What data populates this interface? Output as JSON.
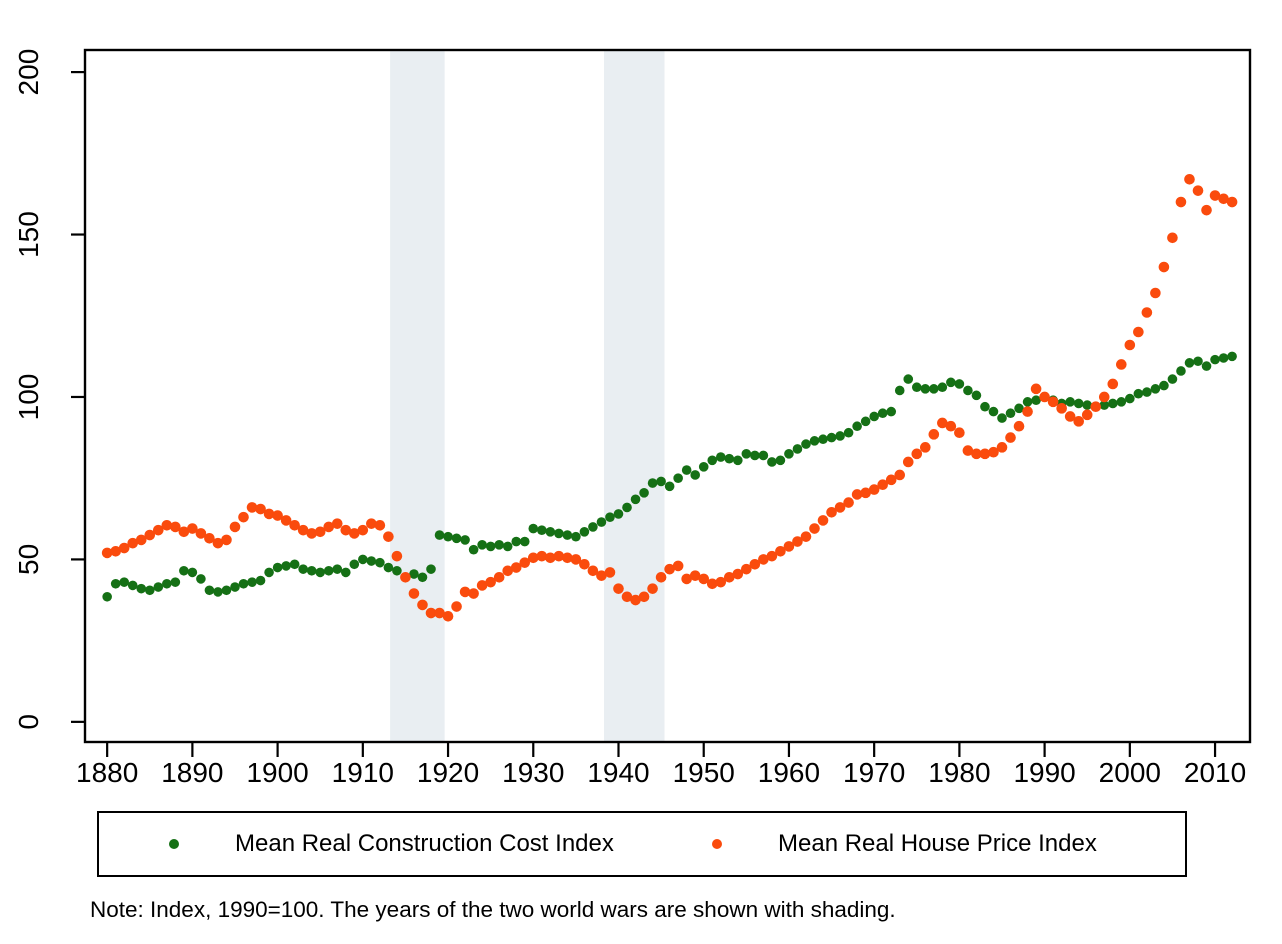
{
  "note": "Note: Index, 1990=100. The years of the two world wars are shown with shading.",
  "legend": {
    "items": [
      {
        "label": "Mean Real Construction Cost Index",
        "color": "#157015"
      },
      {
        "label": "Mean Real House Price Index",
        "color": "#fa4b0d"
      }
    ]
  },
  "chart_data": {
    "type": "scatter",
    "title": "",
    "xlabel": "",
    "ylabel": "",
    "grid": false,
    "legend_position": "bottom",
    "x_ticks": [
      1880,
      1890,
      1900,
      1910,
      1920,
      1930,
      1940,
      1950,
      1960,
      1970,
      1980,
      1990,
      2000,
      2010
    ],
    "y_ticks": [
      0,
      50,
      100,
      150,
      200
    ],
    "xlim": [
      1877.4,
      2014.1
    ],
    "ylim": [
      -6.2,
      206.8
    ],
    "shade_color": "#e9eef2",
    "shaded_regions": [
      {
        "name": "World War I",
        "from": 1913.2,
        "to": 1919.6
      },
      {
        "name": "World War II",
        "from": 1938.3,
        "to": 1945.4
      }
    ],
    "start_year": 1880,
    "end_year": 2012,
    "series": [
      {
        "name": "Mean Real Construction Cost Index",
        "color": "#157015",
        "marker_radius": 4.8,
        "values": [
          38.5,
          42.5,
          43,
          42,
          41,
          40.5,
          41.5,
          42.5,
          43,
          46.5,
          46,
          44,
          40.5,
          40,
          40.5,
          41.5,
          42.5,
          43,
          43.5,
          46,
          47.5,
          48,
          48.5,
          47,
          46.5,
          46,
          46.5,
          47,
          46,
          48.5,
          50,
          49.5,
          49,
          47.5,
          46.5,
          44.5,
          45.5,
          44.5,
          47,
          57.5,
          57,
          56.5,
          56,
          53,
          54.5,
          54,
          54.5,
          54,
          55.5,
          55.5,
          59.5,
          59,
          58.5,
          58,
          57.5,
          57,
          58.5,
          60,
          61.5,
          63,
          64,
          66,
          68.5,
          70.5,
          73.5,
          74,
          72.5,
          75,
          77.5,
          76,
          78.5,
          80.5,
          81.5,
          81,
          80.5,
          82.5,
          82,
          82,
          80,
          80.5,
          82.5,
          84,
          85.5,
          86.5,
          87,
          87.5,
          88,
          89,
          91,
          92.5,
          94,
          95,
          95.5,
          102,
          105.5,
          103,
          102.5,
          102.5,
          103,
          104.5,
          104,
          102,
          100.5,
          97,
          95.5,
          93.5,
          95,
          96.5,
          98.5,
          99,
          100,
          99,
          98,
          98.5,
          98,
          97.5,
          97,
          97.5,
          98,
          98.5,
          99.5,
          101,
          101.5,
          102.5,
          103.5,
          105.5,
          108,
          110.5,
          111,
          109.5,
          111.5,
          112,
          112.5
        ]
      },
      {
        "name": "Mean Real House Price Index",
        "color": "#fa4b0d",
        "marker_radius": 5.3,
        "values": [
          52,
          52.5,
          53.5,
          55,
          56,
          57.5,
          59,
          60.5,
          60,
          58.5,
          59.5,
          58,
          56.5,
          55,
          56,
          60,
          63,
          66,
          65.5,
          64,
          63.5,
          62,
          60.5,
          59,
          58,
          58.5,
          60,
          61,
          59,
          58,
          59,
          61,
          60.5,
          57,
          51,
          44.5,
          39.5,
          36,
          33.5,
          33.5,
          32.5,
          35.5,
          40,
          39.5,
          42,
          43,
          44.5,
          46.5,
          47.5,
          49,
          50.5,
          51,
          50.5,
          51,
          50.5,
          50,
          48.5,
          46.5,
          45,
          46,
          41,
          38.5,
          37.5,
          38.5,
          41,
          44.5,
          47,
          48,
          44,
          45,
          44,
          42.5,
          43,
          44.5,
          45.5,
          47,
          48.5,
          50,
          51,
          52.5,
          54,
          55.5,
          57,
          59.5,
          62,
          64.5,
          66,
          67.5,
          70,
          70.5,
          71.5,
          73,
          74.5,
          76,
          80,
          82.5,
          84.5,
          88.5,
          92,
          91,
          89,
          83.5,
          82.5,
          82.5,
          83,
          84.5,
          87.5,
          91,
          95.5,
          102.5,
          100,
          98.5,
          96.5,
          94,
          92.5,
          94.5,
          97,
          100,
          104,
          110,
          116,
          120,
          126,
          132,
          140,
          149,
          160,
          167,
          163.5,
          157.5,
          162,
          161,
          160
        ]
      }
    ]
  }
}
